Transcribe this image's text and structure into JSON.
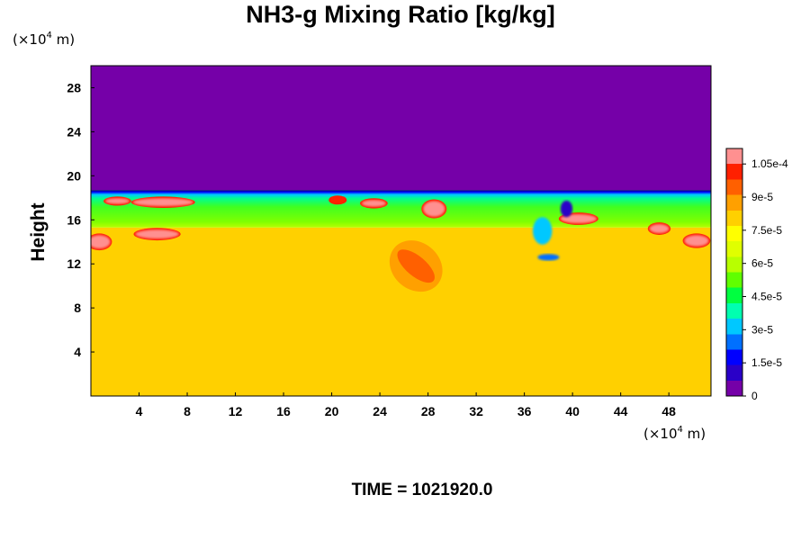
{
  "chart_data": {
    "type": "heatmap",
    "title": "NH3-g Mixing Ratio [kg/kg]",
    "ylabel": "Height",
    "xlabel": "",
    "x_unit_prefix": "(×10",
    "x_unit_exp": "4",
    "x_unit_suffix": " m)",
    "y_unit_prefix": "(×10",
    "y_unit_exp": "4",
    "y_unit_suffix": " m)",
    "xlim": [
      0,
      51.5
    ],
    "ylim": [
      0,
      30
    ],
    "x_ticks": [
      4,
      8,
      12,
      16,
      20,
      24,
      28,
      32,
      36,
      40,
      44,
      48
    ],
    "x_tick_labels": [
      "4",
      "8",
      "12",
      "16",
      "20",
      "24",
      "28",
      "32",
      "36",
      "40",
      "44",
      "48"
    ],
    "y_ticks": [
      4,
      8,
      12,
      16,
      20,
      24,
      28
    ],
    "y_tick_labels": [
      "4",
      "8",
      "12",
      "16",
      "20",
      "24",
      "28"
    ],
    "colorbar": {
      "min": 0,
      "max": 0.000112,
      "tick_values": [
        0,
        1.5e-05,
        3e-05,
        4.5e-05,
        6e-05,
        7.5e-05,
        9e-05,
        0.000105
      ],
      "tick_labels": [
        "0",
        "1.5e-5",
        "3e-5",
        "4.5e-5",
        "6e-5",
        "7.5e-5",
        "9e-5",
        "1.05e-4"
      ],
      "colors": [
        "#7500a8",
        "#2a00c8",
        "#0000ff",
        "#0070ff",
        "#00c8ff",
        "#00ffb0",
        "#00ff40",
        "#60ff00",
        "#b8ff00",
        "#e0ff00",
        "#ffff00",
        "#ffd000",
        "#ffa000",
        "#ff6000",
        "#ff2000",
        "#ff9090"
      ]
    },
    "fields": {
      "upper_region": {
        "y_from": 18.7,
        "y_to": 30,
        "value": 0
      },
      "interface_layer": {
        "y_from": 15.3,
        "y_to": 18.7,
        "value": 6e-05
      },
      "lower_region": {
        "y_from": 0,
        "y_to": 15.3,
        "value": 8e-05
      }
    },
    "features": [
      {
        "kind": "high-blob",
        "x": 6.0,
        "y": 17.6,
        "w": 5.0,
        "h": 0.7,
        "value": 0.000108
      },
      {
        "kind": "high-blob",
        "x": 2.2,
        "y": 17.7,
        "w": 2.0,
        "h": 0.5,
        "value": 0.000105
      },
      {
        "kind": "high-blob",
        "x": 5.5,
        "y": 14.7,
        "w": 3.6,
        "h": 0.8,
        "value": 0.000108
      },
      {
        "kind": "high-blob",
        "x": 0.7,
        "y": 14.0,
        "w": 1.8,
        "h": 1.2,
        "value": 0.000105
      },
      {
        "kind": "high-blob",
        "x": 20.5,
        "y": 17.8,
        "w": 1.2,
        "h": 0.5,
        "value": 0.000102
      },
      {
        "kind": "high-blob",
        "x": 23.5,
        "y": 17.5,
        "w": 2.0,
        "h": 0.6,
        "value": 0.000106
      },
      {
        "kind": "high-blob",
        "x": 28.5,
        "y": 17.0,
        "w": 1.8,
        "h": 1.4,
        "value": 0.000108
      },
      {
        "kind": "high-blob",
        "x": 40.5,
        "y": 16.1,
        "w": 3.0,
        "h": 0.8,
        "value": 0.000108
      },
      {
        "kind": "high-blob",
        "x": 47.2,
        "y": 15.2,
        "w": 1.6,
        "h": 0.8,
        "value": 0.000105
      },
      {
        "kind": "high-blob",
        "x": 50.3,
        "y": 14.1,
        "w": 2.0,
        "h": 1.0,
        "value": 0.000106
      },
      {
        "kind": "plume",
        "x": 27.0,
        "y": 11.8,
        "w": 3.8,
        "h": 3.3,
        "value": 9.5e-05
      },
      {
        "kind": "low-filament",
        "x": 37.5,
        "y": 15.0,
        "w": 1.6,
        "h": 2.5,
        "value": 3e-05
      },
      {
        "kind": "low-filament",
        "x": 38.0,
        "y": 12.6,
        "w": 1.8,
        "h": 0.6,
        "value": 2.5e-05
      },
      {
        "kind": "low-filament",
        "x": 39.5,
        "y": 17.0,
        "w": 1.0,
        "h": 1.5,
        "value": 1e-05
      }
    ],
    "footer": "TIME = 1021920.0"
  }
}
